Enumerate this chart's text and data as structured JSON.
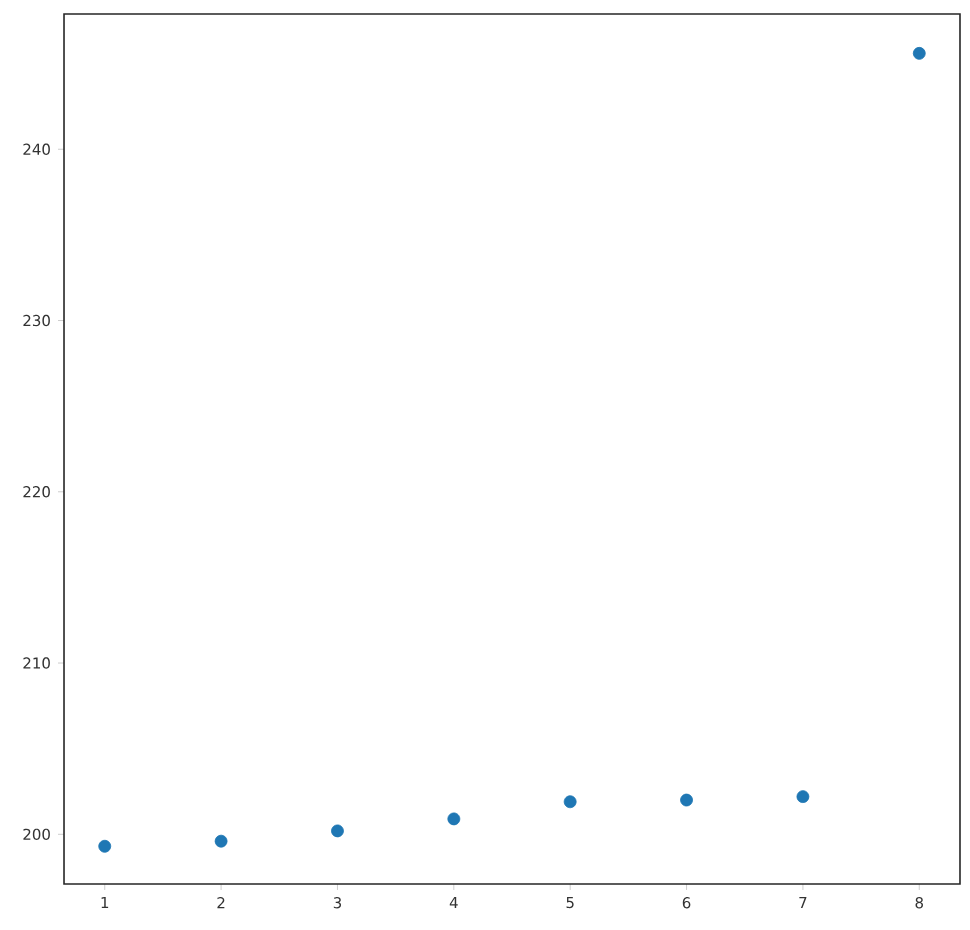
{
  "chart_data": {
    "type": "scatter",
    "x": [
      1,
      2,
      3,
      4,
      5,
      6,
      7,
      8
    ],
    "values": [
      199.3,
      199.6,
      200.2,
      200.9,
      201.9,
      202.0,
      202.2,
      245.6
    ],
    "color": "#1f77b4",
    "marker": "circle",
    "xlim": [
      0.65,
      8.35
    ],
    "ylim": [
      197.1,
      247.9
    ],
    "xticks": [
      1,
      2,
      3,
      4,
      5,
      6,
      7,
      8
    ],
    "yticks": [
      200,
      210,
      220,
      230,
      240
    ]
  }
}
